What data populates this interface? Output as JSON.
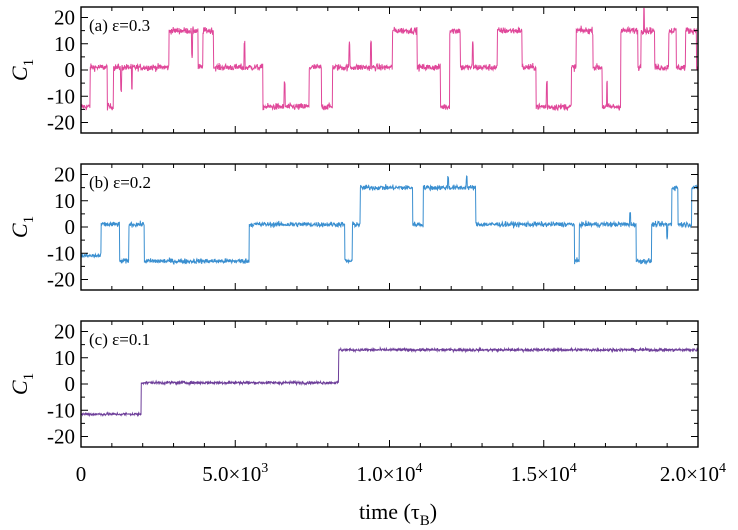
{
  "chart_data": {
    "type": "line",
    "x_axis": {
      "label": "time (τ",
      "label_sub": "B",
      "label_close": ")",
      "xlim": [
        0,
        20000
      ],
      "major_ticks": [
        0,
        5000,
        10000,
        15000,
        20000
      ],
      "tick_labels": [
        {
          "mant": "0",
          "exp": ""
        },
        {
          "mant": "5.0×10",
          "exp": "3"
        },
        {
          "mant": "1.0×10",
          "exp": "4"
        },
        {
          "mant": "1.5×10",
          "exp": "4"
        },
        {
          "mant": "2.0×10",
          "exp": "4"
        }
      ]
    },
    "y_axis": {
      "label": "C",
      "label_sub": "1",
      "ylim": [
        -24,
        24
      ],
      "ticks": [
        20,
        10,
        0,
        -10,
        -20
      ],
      "tick_labels": [
        "20",
        "10",
        "0",
        "-10",
        "-20"
      ]
    },
    "panels": [
      {
        "label": "(a) ε=0.3",
        "color": "#e0489a",
        "noise": 1.3,
        "levels": [
          [
            0,
            -14
          ],
          [
            300,
            1
          ],
          [
            850,
            -14
          ],
          [
            1050,
            1
          ],
          [
            2850,
            15
          ],
          [
            3800,
            1
          ],
          [
            3950,
            15
          ],
          [
            4300,
            1
          ],
          [
            5900,
            -14
          ],
          [
            7400,
            1
          ],
          [
            7800,
            -14
          ],
          [
            8150,
            1
          ],
          [
            10100,
            15
          ],
          [
            10900,
            1
          ],
          [
            11650,
            -14
          ],
          [
            11950,
            15
          ],
          [
            12300,
            1
          ],
          [
            13500,
            15
          ],
          [
            14300,
            1
          ],
          [
            14750,
            -14
          ],
          [
            15900,
            1
          ],
          [
            16050,
            15
          ],
          [
            16600,
            1
          ],
          [
            16900,
            -14
          ],
          [
            17500,
            15
          ],
          [
            18050,
            1
          ],
          [
            18150,
            15
          ],
          [
            18600,
            1
          ],
          [
            19050,
            15
          ],
          [
            19300,
            1
          ],
          [
            19600,
            15
          ],
          [
            19950,
            1
          ]
        ],
        "dips": [
          [
            1300,
            -9
          ],
          [
            1650,
            -9
          ],
          [
            3600,
            -10
          ],
          [
            5300,
            9
          ],
          [
            6600,
            9
          ],
          [
            8700,
            9
          ],
          [
            9400,
            9
          ],
          [
            12700,
            9
          ],
          [
            15100,
            9
          ],
          [
            17050,
            9
          ],
          [
            18250,
            9
          ]
        ]
      },
      {
        "label": "(b) ε=0.2",
        "color": "#3a8fd0",
        "noise": 1.0,
        "levels": [
          [
            0,
            -11
          ],
          [
            650,
            1
          ],
          [
            1250,
            -13
          ],
          [
            1550,
            1
          ],
          [
            2050,
            -13
          ],
          [
            5450,
            1
          ],
          [
            8550,
            -13
          ],
          [
            8800,
            1
          ],
          [
            9050,
            15
          ],
          [
            10750,
            1
          ],
          [
            11100,
            15
          ],
          [
            12800,
            1
          ],
          [
            16000,
            -13
          ],
          [
            16150,
            1
          ],
          [
            18000,
            -13
          ],
          [
            18500,
            1
          ],
          [
            19150,
            15
          ],
          [
            19350,
            1
          ],
          [
            19800,
            15
          ]
        ],
        "dips": [
          [
            11900,
            4
          ],
          [
            12500,
            4
          ],
          [
            17800,
            4
          ],
          [
            19000,
            -5
          ]
        ]
      },
      {
        "label": "(c) ε=0.1",
        "color": "#6e3f9a",
        "noise": 0.55,
        "levels": [
          [
            0,
            -11.5
          ],
          [
            1950,
            0.5
          ],
          [
            8350,
            13
          ]
        ],
        "dips": []
      }
    ]
  }
}
